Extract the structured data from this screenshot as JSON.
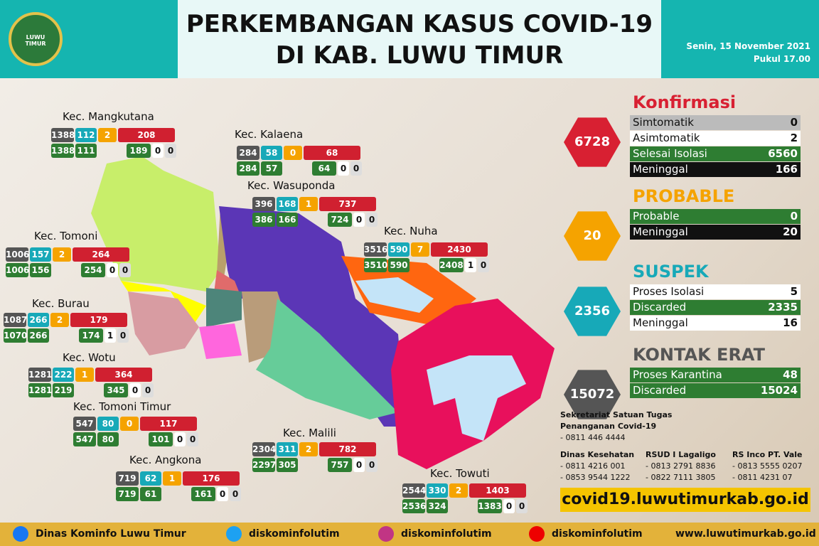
{
  "header": {
    "logo": "LUWU TIMUR",
    "title": [
      "PERKEMBANGAN KASUS COVID-19",
      "DI KAB. LUWU TIMUR"
    ],
    "date": "Senin, 15 November 2021",
    "time": "Pukul 17.00"
  },
  "districts": [
    {
      "name": "Kec. Mangkutana",
      "kontak": [
        1388,
        1388
      ],
      "suspek": [
        112,
        111
      ],
      "probable": 2,
      "konfirmasi": 208,
      "detail": [
        189,
        0,
        0
      ]
    },
    {
      "name": "Kec. Kalaena",
      "kontak": [
        284,
        284
      ],
      "suspek": [
        58,
        57
      ],
      "probable": 0,
      "konfirmasi": 68,
      "detail": [
        64,
        0,
        0
      ]
    },
    {
      "name": "Kec. Wasuponda",
      "kontak": [
        396,
        386
      ],
      "suspek": [
        168,
        166
      ],
      "probable": 1,
      "konfirmasi": 737,
      "detail": [
        724,
        0,
        0
      ]
    },
    {
      "name": "Kec. Tomoni",
      "kontak": [
        1006,
        1006
      ],
      "suspek": [
        157,
        156
      ],
      "probable": 2,
      "konfirmasi": 264,
      "detail": [
        254,
        0,
        0
      ]
    },
    {
      "name": "Kec. Nuha",
      "kontak": [
        3516,
        3510
      ],
      "suspek": [
        590,
        590
      ],
      "probable": 7,
      "konfirmasi": 2430,
      "detail": [
        2408,
        1,
        0
      ]
    },
    {
      "name": "Kec. Burau",
      "kontak": [
        1087,
        1070
      ],
      "suspek": [
        266,
        266
      ],
      "probable": 2,
      "konfirmasi": 179,
      "detail": [
        174,
        1,
        0
      ]
    },
    {
      "name": "Kec. Wotu",
      "kontak": [
        1281,
        1281
      ],
      "suspek": [
        222,
        219
      ],
      "probable": 1,
      "konfirmasi": 364,
      "detail": [
        345,
        0,
        0
      ]
    },
    {
      "name": "Kec. Tomoni Timur",
      "kontak": [
        547,
        547
      ],
      "suspek": [
        80,
        80
      ],
      "probable": 0,
      "konfirmasi": 117,
      "detail": [
        101,
        0,
        0
      ]
    },
    {
      "name": "Kec. Angkona",
      "kontak": [
        719,
        719
      ],
      "suspek": [
        62,
        61
      ],
      "probable": 1,
      "konfirmasi": 176,
      "detail": [
        161,
        0,
        0
      ]
    },
    {
      "name": "Kec. Malili",
      "kontak": [
        2304,
        2297
      ],
      "suspek": [
        311,
        305
      ],
      "probable": 2,
      "konfirmasi": 782,
      "detail": [
        757,
        0,
        0
      ]
    },
    {
      "name": "Kec. Towuti",
      "kontak": [
        2544,
        2536
      ],
      "suspek": [
        330,
        324
      ],
      "probable": 2,
      "konfirmasi": 1403,
      "detail": [
        1383,
        0,
        0
      ]
    }
  ],
  "summary": [
    {
      "title": "Konfirmasi",
      "total": 6728,
      "rows": [
        {
          "label": "Simtomatik",
          "value": 0
        },
        {
          "label": "Asimtomatik",
          "value": 2
        },
        {
          "label": "Selesai Isolasi",
          "value": 6560
        },
        {
          "label": "Meninggal",
          "value": 166
        }
      ]
    },
    {
      "title": "PROBABLE",
      "total": 20,
      "rows": [
        {
          "label": "Probable",
          "value": 0
        },
        {
          "label": "Meninggal",
          "value": 20
        }
      ]
    },
    {
      "title": "SUSPEK",
      "total": 2356,
      "rows": [
        {
          "label": "Proses Isolasi",
          "value": 5
        },
        {
          "label": "Discarded",
          "value": 2335
        },
        {
          "label": "Meninggal",
          "value": 16
        }
      ]
    },
    {
      "title": "KONTAK ERAT",
      "total": 15072,
      "rows": [
        {
          "label": "Proses Karantina",
          "value": 48
        },
        {
          "label": "Discarded",
          "value": 15024
        }
      ]
    }
  ],
  "contacts": [
    {
      "lines": [
        "Sekretariat Satuan Tugas",
        "Penanganan Covid-19",
        "- 0811 446 4444"
      ]
    },
    {
      "lines": [
        "Dinas Kesehatan",
        "- 0811 4216 001",
        "- 0853 9544 1222"
      ]
    },
    {
      "lines": [
        "RSUD I Lagaligo",
        "- 0813 2791 8836",
        "- 0822 7111 3805"
      ]
    },
    {
      "lines": [
        "RS Inco PT. Vale",
        "- 0813 5555 0207",
        "- 0811 4231 07"
      ]
    }
  ],
  "url": "covid19.luwutimurkab.go.id",
  "footer": [
    "Dinas Kominfo Luwu Timur",
    "diskominfolutim",
    "diskominfolutim",
    "diskominfolutim",
    "www.luwutimurkab.go.id"
  ]
}
